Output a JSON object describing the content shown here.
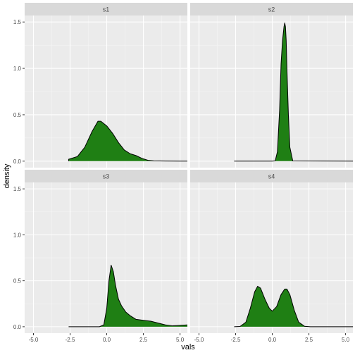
{
  "chart_data": {
    "type": "area",
    "title": "",
    "xlabel": "vals",
    "ylabel": "density",
    "xlim": [
      -5.6,
      5.5
    ],
    "ylim": [
      -0.07,
      1.57
    ],
    "x_ticks": [
      -5.0,
      -2.5,
      0.0,
      2.5,
      5.0
    ],
    "x_tick_labels": [
      "-5.0",
      "-2.5",
      "0.0",
      "2.5",
      "5.0"
    ],
    "y_ticks": [
      0.0,
      0.5,
      1.0,
      1.5
    ],
    "y_tick_labels": [
      "0.0",
      "0.5",
      "1.0",
      "1.5"
    ],
    "grid": true,
    "fill_color": "#1f7f14",
    "line_color": "#000000",
    "panel_background": "#ebebeb",
    "strip_background": "#d9d9d9",
    "facets": [
      {
        "label": "s1",
        "x": [
          -2.6,
          -2.0,
          -1.5,
          -1.0,
          -0.6,
          -0.4,
          0.0,
          0.4,
          0.8,
          1.2,
          1.6,
          2.0,
          2.4,
          2.8,
          3.2,
          4.0,
          5.5
        ],
        "y": [
          0.02,
          0.05,
          0.15,
          0.32,
          0.43,
          0.43,
          0.38,
          0.3,
          0.2,
          0.12,
          0.08,
          0.06,
          0.03,
          0.01,
          0.003,
          0.001,
          0.0
        ]
      },
      {
        "label": "s2",
        "x": [
          -2.6,
          0.0,
          0.2,
          0.35,
          0.5,
          0.6,
          0.7,
          0.8,
          0.85,
          0.9,
          0.95,
          1.0,
          1.1,
          1.2,
          1.4,
          5.5
        ],
        "y": [
          0.0,
          0.0,
          0.003,
          0.1,
          0.55,
          1.05,
          1.3,
          1.45,
          1.49,
          1.45,
          1.3,
          1.0,
          0.5,
          0.15,
          0.002,
          0.0
        ]
      },
      {
        "label": "s3",
        "x": [
          -2.6,
          -0.5,
          -0.2,
          0.0,
          0.15,
          0.3,
          0.45,
          0.6,
          0.8,
          1.0,
          1.3,
          1.6,
          2.0,
          2.5,
          3.0,
          3.5,
          4.0,
          4.5,
          5.0,
          5.5
        ],
        "y": [
          0.0,
          0.0,
          0.02,
          0.2,
          0.5,
          0.67,
          0.6,
          0.45,
          0.3,
          0.23,
          0.16,
          0.12,
          0.08,
          0.07,
          0.06,
          0.04,
          0.02,
          0.01,
          0.015,
          0.02
        ],
        "open_right": true
      },
      {
        "label": "s4",
        "x": [
          -2.6,
          -2.2,
          -1.8,
          -1.5,
          -1.2,
          -1.0,
          -0.8,
          -0.5,
          -0.2,
          0.0,
          0.3,
          0.6,
          0.85,
          1.0,
          1.2,
          1.5,
          1.8,
          2.2,
          2.6,
          3.0,
          5.5
        ],
        "y": [
          0.0,
          0.003,
          0.05,
          0.2,
          0.38,
          0.44,
          0.42,
          0.3,
          0.2,
          0.17,
          0.22,
          0.35,
          0.41,
          0.41,
          0.35,
          0.18,
          0.05,
          0.005,
          0.0,
          0.0,
          0.0
        ]
      }
    ]
  }
}
